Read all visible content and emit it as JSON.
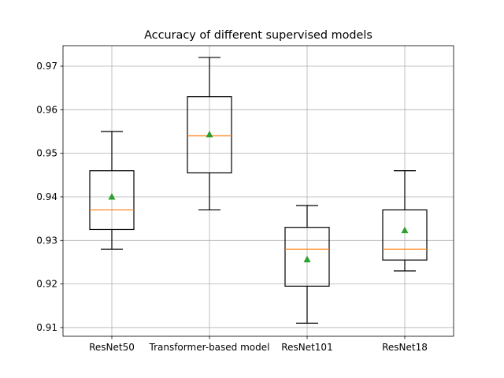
{
  "chart_data": {
    "type": "box",
    "title": "Accuracy of different supervised models",
    "xlabel": "",
    "ylabel": "",
    "ylim": [
      0.908,
      0.9747
    ],
    "grid": true,
    "yticks": [
      0.91,
      0.92,
      0.93,
      0.94,
      0.95,
      0.96,
      0.97
    ],
    "ytick_labels": [
      "0.91",
      "0.92",
      "0.93",
      "0.94",
      "0.95",
      "0.96",
      "0.97"
    ],
    "categories": [
      "ResNet50",
      "Transformer-based model",
      "ResNet101",
      "ResNet18"
    ],
    "boxes": [
      {
        "whisker_low": 0.928,
        "q1": 0.9325,
        "median": 0.937,
        "q3": 0.946,
        "whisker_high": 0.955,
        "mean": 0.94
      },
      {
        "whisker_low": 0.937,
        "q1": 0.9455,
        "median": 0.954,
        "q3": 0.963,
        "whisker_high": 0.972,
        "mean": 0.9543
      },
      {
        "whisker_low": 0.911,
        "q1": 0.9195,
        "median": 0.928,
        "q3": 0.933,
        "whisker_high": 0.938,
        "mean": 0.9256
      },
      {
        "whisker_low": 0.923,
        "q1": 0.9255,
        "median": 0.928,
        "q3": 0.937,
        "whisker_high": 0.946,
        "mean": 0.9323
      }
    ],
    "colors": {
      "box": "#000000",
      "median": "#ff7f0e",
      "mean": "#2ca02c",
      "grid": "#b0b0b0"
    }
  }
}
